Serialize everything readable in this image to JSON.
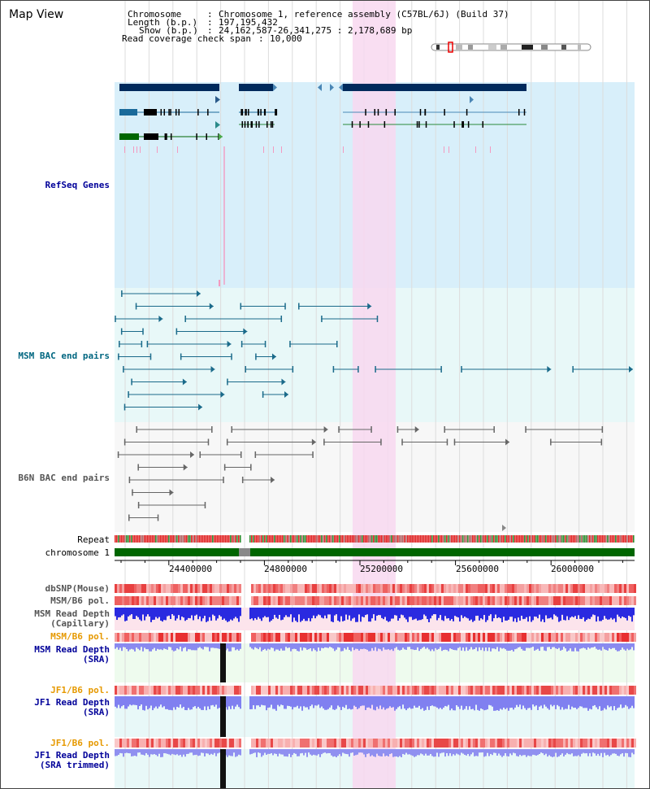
{
  "title": "Map View",
  "header": {
    "chromosome_label": "Chromosome",
    "chromosome_value": "Chromosome 1, reference assembly (C57BL/6J) (Build 37)",
    "length_label": "Length (b.p.)",
    "length_value": "197,195,432",
    "show_label": "Show (b.p.)",
    "show_value": "24,162,587-26,341,275 : 2,178,689 bp",
    "coverage_label": "Read coverage check span",
    "coverage_value": "10,000",
    "sep": ":"
  },
  "tracks": {
    "refseq": "RefSeq Genes",
    "msm_bac": "MSM BAC end pairs",
    "b6n_bac": "B6N BAC end pairs",
    "repeat": "Repeat",
    "chromosome": "chromosome 1",
    "dbsnp": "dbSNP(Mouse)",
    "msm_b6_pol_1": "MSM/B6 pol.",
    "msm_read_depth_cap_1": "MSM Read Depth",
    "msm_read_depth_cap_2": "(Capillary)",
    "msm_b6_pol_2": "MSM/B6 pol.",
    "msm_read_depth_sra_1": "MSM Read Depth",
    "msm_read_depth_sra_2": "(SRA)",
    "jf1_b6_pol_1": "JF1/B6 pol.",
    "jf1_read_depth_sra_1": "JF1 Read Depth",
    "jf1_read_depth_sra_2": "(SRA)",
    "jf1_b6_pol_2": "JF1/B6 pol.",
    "jf1_read_depth_trim_1": "JF1 Read Depth",
    "jf1_read_depth_trim_2": "(SRA trimmed)"
  },
  "axis": {
    "ticks": [
      "24400000",
      "24800000",
      "25200000",
      "25600000",
      "26000000"
    ]
  },
  "colors": {
    "refseq_label": "#000099",
    "msm_label": "#006680",
    "b6n_label": "#555555",
    "orange_label": "#e69900",
    "blue_label": "#000099",
    "highlight": "#f8d8f0",
    "refseq_bg": "#d8effa",
    "bac_bg": "#e8f8f8",
    "chromosome_bar": "#006600"
  }
}
